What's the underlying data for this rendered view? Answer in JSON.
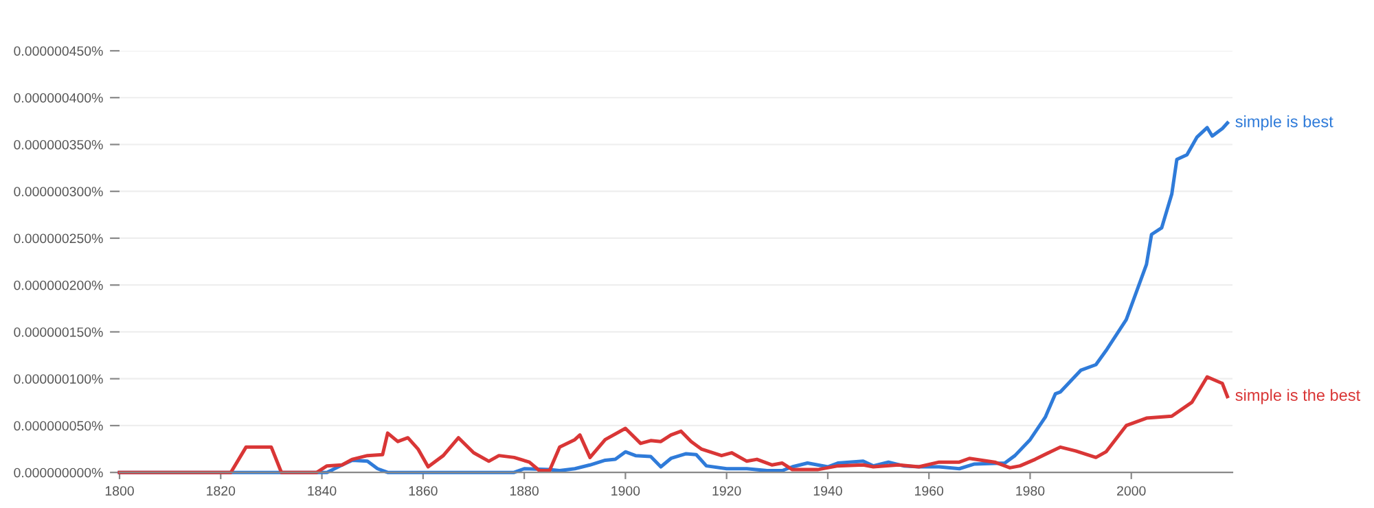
{
  "chart_data": {
    "type": "line",
    "series": [
      {
        "name": "simple is best",
        "color": "#2f7bd9",
        "x": [
          1800,
          1840,
          1841,
          1844,
          1846,
          1849,
          1851,
          1853,
          1878,
          1880,
          1885,
          1887,
          1890,
          1893,
          1896,
          1898,
          1900,
          1902,
          1905,
          1907,
          1909,
          1912,
          1914,
          1916,
          1920,
          1924,
          1928,
          1931,
          1933,
          1936,
          1940,
          1942,
          1947,
          1949,
          1952,
          1955,
          1958,
          1962,
          1966,
          1969,
          1975,
          1977,
          1980,
          1983,
          1985,
          1986,
          1990,
          1993,
          1995,
          1999,
          2003,
          2004,
          2006,
          2008,
          2009,
          2011,
          2013,
          2015,
          2016,
          2018,
          2019
        ],
        "values": [
          0,
          0,
          0,
          8e-09,
          1.3e-08,
          1.2e-08,
          4e-09,
          0,
          0,
          4e-09,
          3e-09,
          2e-09,
          4e-09,
          8e-09,
          1.3e-08,
          1.4e-08,
          2.2e-08,
          1.8e-08,
          1.7e-08,
          6e-09,
          1.5e-08,
          2e-08,
          1.9e-08,
          7e-09,
          4e-09,
          4e-09,
          2e-09,
          2e-09,
          6e-09,
          1e-08,
          6e-09,
          1e-08,
          1.2e-08,
          7e-09,
          1.1e-08,
          7e-09,
          6e-09,
          6e-09,
          4e-09,
          9e-09,
          1e-08,
          1.8e-08,
          3.5e-08,
          5.9e-08,
          8.4e-08,
          8.6e-08,
          1.09e-07,
          1.15e-07,
          1.3e-07,
          1.63e-07,
          2.22e-07,
          2.54e-07,
          2.61e-07,
          2.97e-07,
          3.34e-07,
          3.39e-07,
          3.58e-07,
          3.68e-07,
          3.59e-07,
          3.67e-07,
          3.73e-07
        ]
      },
      {
        "name": "simple is the best",
        "color": "#d93636",
        "x": [
          1800,
          1822,
          1825,
          1830,
          1832,
          1839,
          1841,
          1844,
          1846,
          1849,
          1852,
          1853,
          1855,
          1857,
          1859,
          1861,
          1864,
          1867,
          1870,
          1873,
          1875,
          1878,
          1881,
          1883,
          1885,
          1887,
          1890,
          1891,
          1893,
          1896,
          1900,
          1903,
          1905,
          1907,
          1909,
          1911,
          1913,
          1915,
          1919,
          1921,
          1924,
          1926,
          1929,
          1931,
          1933,
          1938,
          1942,
          1947,
          1949,
          1954,
          1958,
          1962,
          1966,
          1968,
          1973,
          1976,
          1978,
          1981,
          1984,
          1986,
          1989,
          1993,
          1995,
          1999,
          2003,
          2008,
          2012,
          2015,
          2018,
          2019
        ],
        "values": [
          0,
          0,
          2.7e-08,
          2.7e-08,
          0,
          0,
          7e-09,
          8e-09,
          1.4e-08,
          1.8e-08,
          1.9e-08,
          4.2e-08,
          3.3e-08,
          3.7e-08,
          2.5e-08,
          6e-09,
          1.8e-08,
          3.7e-08,
          2.1e-08,
          1.2e-08,
          1.8e-08,
          1.6e-08,
          1.1e-08,
          2e-09,
          2e-09,
          2.7e-08,
          3.5e-08,
          4e-08,
          1.6e-08,
          3.5e-08,
          4.7e-08,
          3.1e-08,
          3.4e-08,
          3.3e-08,
          4e-08,
          4.4e-08,
          3.3e-08,
          2.5e-08,
          1.8e-08,
          2.1e-08,
          1.2e-08,
          1.4e-08,
          8e-09,
          1e-08,
          3e-09,
          3e-09,
          7e-09,
          8e-09,
          6e-09,
          8e-09,
          6e-09,
          1.1e-08,
          1.1e-08,
          1.5e-08,
          1.1e-08,
          5e-09,
          7e-09,
          1.4e-08,
          2.2e-08,
          2.7e-08,
          2.3e-08,
          1.6e-08,
          2.2e-08,
          5e-08,
          5.8e-08,
          6e-08,
          7.5e-08,
          1.02e-07,
          9.5e-08,
          8.1e-08
        ]
      }
    ],
    "xlim": [
      1800,
      2020
    ],
    "xticks": [
      1800,
      1820,
      1840,
      1860,
      1880,
      1900,
      1920,
      1940,
      1960,
      1980,
      2000
    ],
    "ylim": [
      0,
      4.5e-07
    ],
    "yticks": [
      {
        "value": 0,
        "label": "0.000000000%"
      },
      {
        "value": 5e-08,
        "label": "0.000000050%"
      },
      {
        "value": 1e-07,
        "label": "0.000000100%"
      },
      {
        "value": 1.5e-07,
        "label": "0.000000150%"
      },
      {
        "value": 2e-07,
        "label": "0.000000200%"
      },
      {
        "value": 2.5e-07,
        "label": "0.000000250%"
      },
      {
        "value": 3e-07,
        "label": "0.000000300%"
      },
      {
        "value": 3.5e-07,
        "label": "0.000000350%"
      },
      {
        "value": 4e-07,
        "label": "0.000000400%"
      },
      {
        "value": 4.5e-07,
        "label": "0.000000450%"
      }
    ],
    "grid": "y",
    "line_style": "solid"
  }
}
